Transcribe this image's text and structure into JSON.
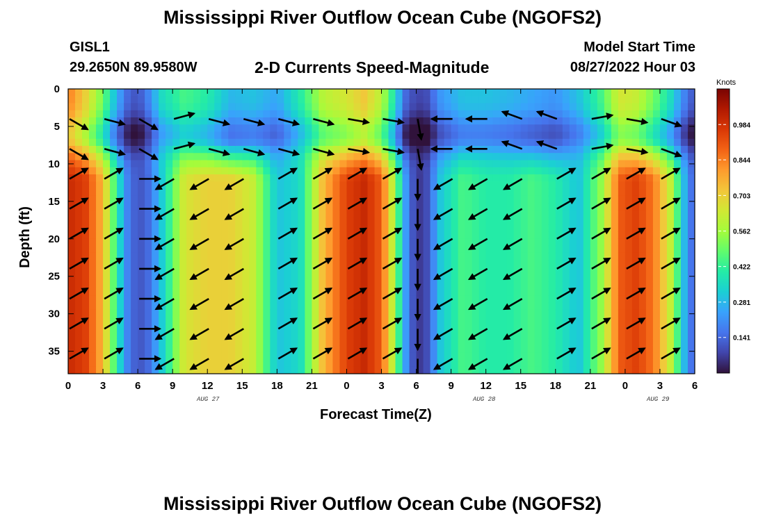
{
  "page": {
    "title": "Mississippi River Outflow Ocean Cube (NGOFS2)",
    "bottom_title": "Mississippi River Outflow Ocean Cube (NGOFS2)",
    "station_id": "GISL1",
    "station_coords": "29.2650N  89.9580W",
    "plot_title": "2-D Currents Speed-Magnitude",
    "model_start_label": "Model Start Time",
    "model_start_value": "08/27/2022 Hour 03"
  },
  "colors": {
    "colormap": [
      "#30123b",
      "#4145ab",
      "#4675ed",
      "#39a2fc",
      "#1bcfd4",
      "#24eca6",
      "#61fc6c",
      "#a4fc3b",
      "#d1e834",
      "#f3c63a",
      "#fe9b2d",
      "#f36315",
      "#d93806",
      "#b11901",
      "#7a0402"
    ],
    "arrow": "#000000"
  },
  "chart_data": {
    "type": "heatmap",
    "xlabel": "Forecast Time(Z)",
    "ylabel": "Depth (ft)",
    "x_tick_labels": [
      "0",
      "3",
      "6",
      "9",
      "12",
      "15",
      "18",
      "21",
      "0",
      "3",
      "6",
      "9",
      "12",
      "15",
      "18",
      "21",
      "0",
      "3",
      "6"
    ],
    "x_date_labels": [
      "AUG 27",
      "AUG 28",
      "AUG 29"
    ],
    "xlim_hours": [
      0,
      54
    ],
    "ylim_ft": [
      38,
      0
    ],
    "y_ticks": [
      0,
      5,
      10,
      15,
      20,
      25,
      30,
      35
    ],
    "colorbar": {
      "unit": "Knots",
      "ticks": [
        "0.984",
        "0.844",
        "0.703",
        "0.562",
        "0.422",
        "0.281",
        "0.141"
      ],
      "tick_values": [
        0.984,
        0.844,
        0.703,
        0.562,
        0.422,
        0.281,
        0.141
      ],
      "range": [
        0,
        1.125
      ]
    },
    "speed_profile": {
      "description_free": true,
      "hours": [
        0,
        1.5,
        3,
        4,
        5,
        6,
        7,
        8,
        10,
        12,
        14,
        16,
        18,
        20,
        22,
        24,
        25.5,
        27,
        28,
        29,
        30,
        31,
        32,
        34,
        36,
        38,
        40,
        42,
        44,
        46,
        47.5,
        49,
        50.5,
        52,
        53,
        54
      ],
      "surface_speed": [
        0.85,
        0.7,
        0.5,
        0.3,
        0.15,
        0.1,
        0.2,
        0.35,
        0.45,
        0.4,
        0.28,
        0.3,
        0.25,
        0.4,
        0.6,
        0.65,
        0.72,
        0.6,
        0.4,
        0.15,
        0.08,
        0.1,
        0.22,
        0.3,
        0.3,
        0.28,
        0.25,
        0.22,
        0.3,
        0.45,
        0.65,
        0.62,
        0.5,
        0.35,
        0.2,
        0.1
      ],
      "deep_speed": [
        1.0,
        0.95,
        0.75,
        0.45,
        0.2,
        0.1,
        0.15,
        0.3,
        0.65,
        0.7,
        0.7,
        0.62,
        0.3,
        0.35,
        0.75,
        0.95,
        1.0,
        0.9,
        0.6,
        0.25,
        0.05,
        0.1,
        0.3,
        0.45,
        0.4,
        0.4,
        0.45,
        0.4,
        0.3,
        0.55,
        0.9,
        0.95,
        0.85,
        0.6,
        0.3,
        0.1
      ]
    },
    "arrow_hours": [
      0,
      3,
      6,
      9,
      12,
      15,
      18,
      21,
      24,
      27,
      30,
      33,
      36,
      39,
      42,
      45,
      48,
      51
    ],
    "arrow_depths_ft": [
      4,
      8,
      12,
      16,
      20,
      24,
      28,
      32,
      36
    ],
    "arrow_direction_deg": {
      "surface": [
        30,
        15,
        30,
        -15,
        15,
        15,
        15,
        15,
        10,
        10,
        80,
        180,
        180,
        200,
        200,
        -10,
        10,
        20
      ],
      "deep": [
        -30,
        -30,
        0,
        150,
        150,
        150,
        -30,
        -30,
        -30,
        -30,
        90,
        150,
        150,
        150,
        -30,
        -30,
        -30,
        -30
      ]
    }
  }
}
